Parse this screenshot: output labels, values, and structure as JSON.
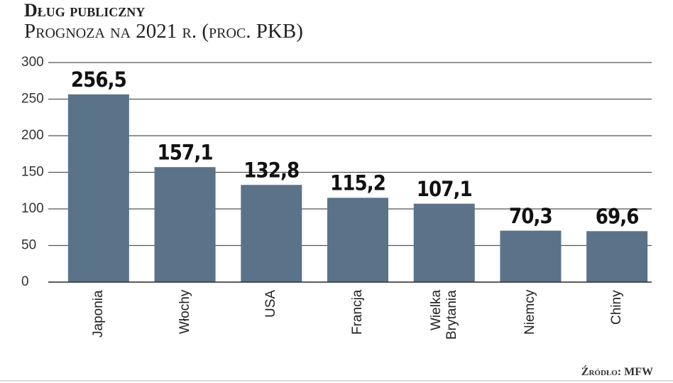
{
  "chart_data": {
    "type": "bar",
    "title": "Dług publiczny",
    "subtitle": "Prognoza na 2021 r. (proc. PKB)",
    "categories": [
      "Japonia",
      "Włochy",
      "USA",
      "Francja",
      "Wielka Brytania",
      "Niemcy",
      "Chiny"
    ],
    "values": [
      256.5,
      157.1,
      132.8,
      115.2,
      107.1,
      70.3,
      69.6
    ],
    "value_labels": [
      "256,5",
      "157,1",
      "132,8",
      "115,2",
      "107,1",
      "70,3",
      "69,6"
    ],
    "color": "#5a7389",
    "ylim": [
      0,
      300
    ],
    "yticks": [
      0,
      50,
      100,
      150,
      200,
      250,
      300
    ],
    "grid": true,
    "source": "Źródło: MFW"
  }
}
